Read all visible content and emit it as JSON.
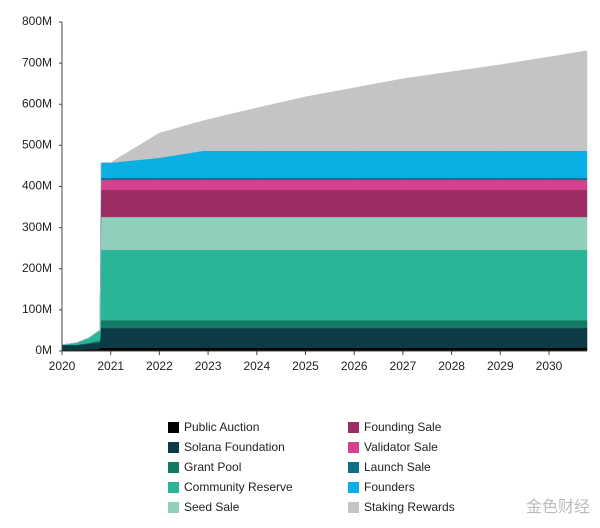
{
  "chart_data": {
    "type": "stacked_area",
    "x": [
      2020,
      2020.3,
      2020.55,
      2020.78,
      2020.8,
      2021,
      2022,
      2022.9,
      2024,
      2025,
      2026,
      2027,
      2028,
      2029,
      2030,
      2030.78
    ],
    "xlim": [
      2020,
      2030.78
    ],
    "xticks": [
      2020,
      2021,
      2022,
      2023,
      2024,
      2025,
      2026,
      2027,
      2028,
      2029,
      2030
    ],
    "ylim": [
      0,
      800
    ],
    "yticks": [
      {
        "value": 0,
        "label": "0M"
      },
      {
        "value": 100,
        "label": "100M"
      },
      {
        "value": 200,
        "label": "200M"
      },
      {
        "value": 300,
        "label": "300M"
      },
      {
        "value": 400,
        "label": "400M"
      },
      {
        "value": 500,
        "label": "500M"
      },
      {
        "value": 600,
        "label": "600M"
      },
      {
        "value": 700,
        "label": "700M"
      },
      {
        "value": 800,
        "label": "800M"
      }
    ],
    "grid": false,
    "series": [
      {
        "name": "Public Auction",
        "color": "#000000",
        "values": [
          3,
          3,
          4,
          5,
          8,
          8,
          8,
          8,
          8,
          8,
          8,
          8,
          8,
          8,
          8,
          8
        ]
      },
      {
        "name": "Solana Foundation",
        "color": "#0d3b45",
        "values": [
          12,
          12,
          14,
          16,
          48,
          48,
          48,
          48,
          48,
          48,
          48,
          48,
          48,
          48,
          48,
          48
        ]
      },
      {
        "name": "Grant Pool",
        "color": "#127b66",
        "values": [
          0,
          0,
          2,
          5,
          19,
          19,
          19,
          19,
          19,
          19,
          19,
          19,
          19,
          19,
          19,
          19
        ]
      },
      {
        "name": "Community Reserve",
        "color": "#2bb598",
        "values": [
          0,
          5,
          12,
          25,
          171,
          171,
          171,
          171,
          171,
          171,
          171,
          171,
          171,
          171,
          171,
          171
        ]
      },
      {
        "name": "Seed Sale",
        "color": "#8fcfbb",
        "values": [
          0,
          0,
          0,
          0,
          80,
          80,
          80,
          80,
          80,
          80,
          80,
          80,
          80,
          80,
          80,
          80
        ]
      },
      {
        "name": "Founding Sale",
        "color": "#9c2d63",
        "values": [
          0,
          0,
          0,
          0,
          66,
          66,
          66,
          66,
          66,
          66,
          66,
          66,
          66,
          66,
          66,
          66
        ]
      },
      {
        "name": "Validator Sale",
        "color": "#d4428d",
        "values": [
          0,
          0,
          0,
          0,
          24,
          24,
          24,
          24,
          24,
          24,
          24,
          24,
          24,
          24,
          24,
          24
        ]
      },
      {
        "name": "Launch Sale",
        "color": "#0d6f86",
        "values": [
          0,
          0,
          0,
          0,
          5,
          5,
          5,
          5,
          5,
          5,
          5,
          5,
          5,
          5,
          5,
          5
        ]
      },
      {
        "name": "Founders",
        "color": "#0ab0e4",
        "values": [
          0,
          0,
          0,
          0,
          37,
          37,
          49,
          66,
          66,
          66,
          66,
          66,
          66,
          66,
          66,
          66
        ]
      },
      {
        "name": "Staking Rewards",
        "color": "#c4c4c4",
        "values": [
          0,
          0,
          0,
          0,
          0,
          0,
          60,
          73,
          104,
          131,
          153,
          175,
          192,
          209,
          228,
          243
        ]
      }
    ]
  },
  "watermark": "金色财经"
}
